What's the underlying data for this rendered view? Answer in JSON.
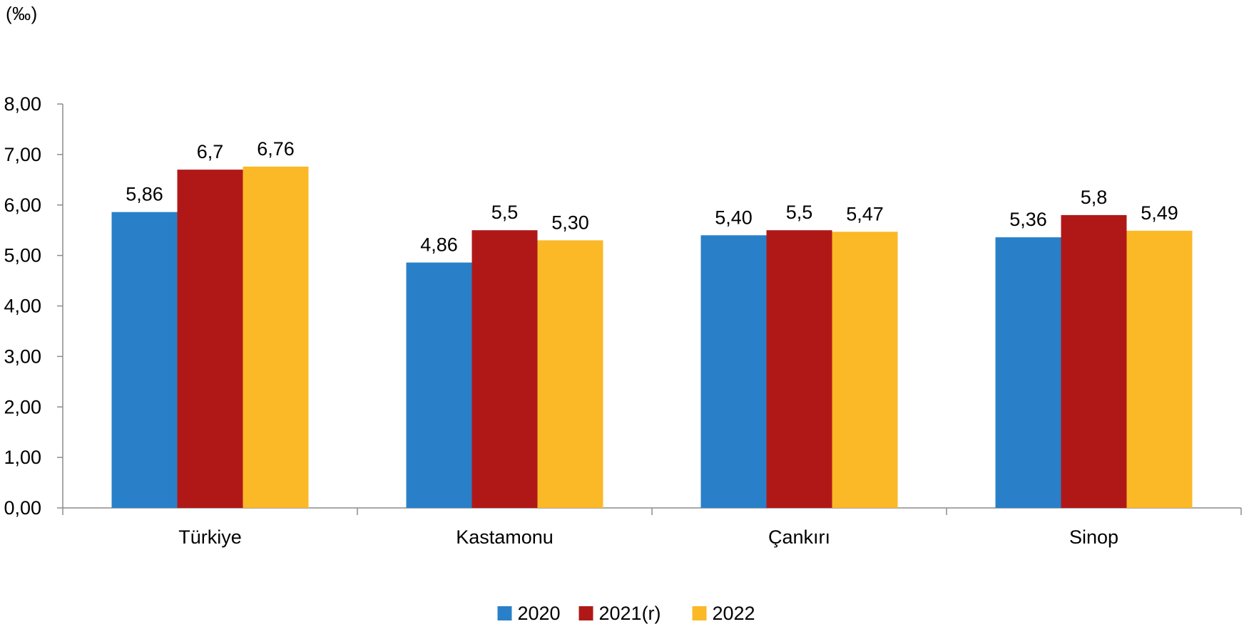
{
  "chart_data": {
    "type": "bar",
    "unit_label": "(‰)",
    "categories": [
      "Türkiye",
      "Kastamonu",
      "Çankırı",
      "Sinop"
    ],
    "series": [
      {
        "name": "2020",
        "color": "#2980c8",
        "values": [
          5.86,
          4.86,
          5.4,
          5.36
        ],
        "labels": [
          "5,86",
          "4,86",
          "5,40",
          "5,36"
        ]
      },
      {
        "name": "2021(r)",
        "color": "#b01818",
        "values": [
          6.7,
          5.5,
          5.5,
          5.8
        ],
        "labels": [
          "6,7",
          "5,5",
          "5,5",
          "5,8"
        ]
      },
      {
        "name": "2022",
        "color": "#fbb927",
        "values": [
          6.76,
          5.3,
          5.47,
          5.49
        ],
        "labels": [
          "6,76",
          "5,30",
          "5,47",
          "5,49"
        ]
      }
    ],
    "ylim": [
      0,
      8
    ],
    "y_ticks": [
      0,
      1,
      2,
      3,
      4,
      5,
      6,
      7,
      8
    ],
    "y_tick_labels": [
      "0,00",
      "1,00",
      "2,00",
      "3,00",
      "4,00",
      "5,00",
      "6,00",
      "7,00",
      "8,00"
    ],
    "grid": false,
    "legend_position": "bottom-center",
    "title": "",
    "xlabel": "",
    "ylabel": ""
  }
}
